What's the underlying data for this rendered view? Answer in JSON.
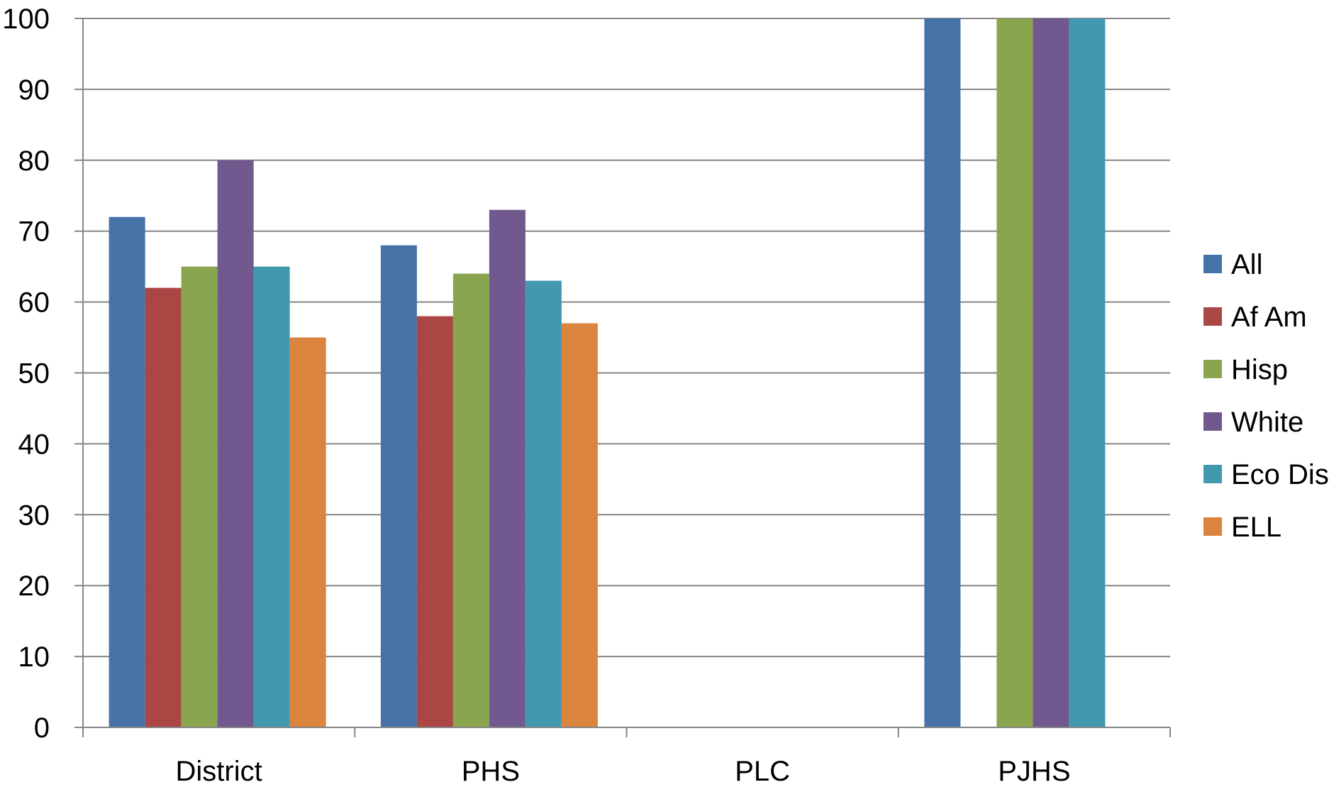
{
  "chart_data": {
    "type": "bar",
    "categories": [
      "District",
      "PHS",
      "PLC",
      "PJHS"
    ],
    "series": [
      {
        "name": "All",
        "color": "#4572A7",
        "values": [
          72,
          68,
          null,
          100
        ]
      },
      {
        "name": "Af Am",
        "color": "#AA4643",
        "values": [
          62,
          58,
          null,
          null
        ]
      },
      {
        "name": "Hisp",
        "color": "#89A54E",
        "values": [
          65,
          64,
          null,
          100
        ]
      },
      {
        "name": "White",
        "color": "#71588F",
        "values": [
          80,
          73,
          null,
          100
        ]
      },
      {
        "name": "Eco Dis",
        "color": "#4198AF",
        "values": [
          65,
          63,
          null,
          100
        ]
      },
      {
        "name": "ELL",
        "color": "#DB843D",
        "values": [
          55,
          57,
          null,
          null
        ]
      }
    ],
    "yticks": [
      "0",
      "10",
      "20",
      "30",
      "40",
      "50",
      "60",
      "70",
      "80",
      "90",
      "100"
    ],
    "ylim": [
      0,
      100
    ],
    "grid": true,
    "legend_position": "right",
    "title": "",
    "xlabel": "",
    "ylabel": ""
  }
}
